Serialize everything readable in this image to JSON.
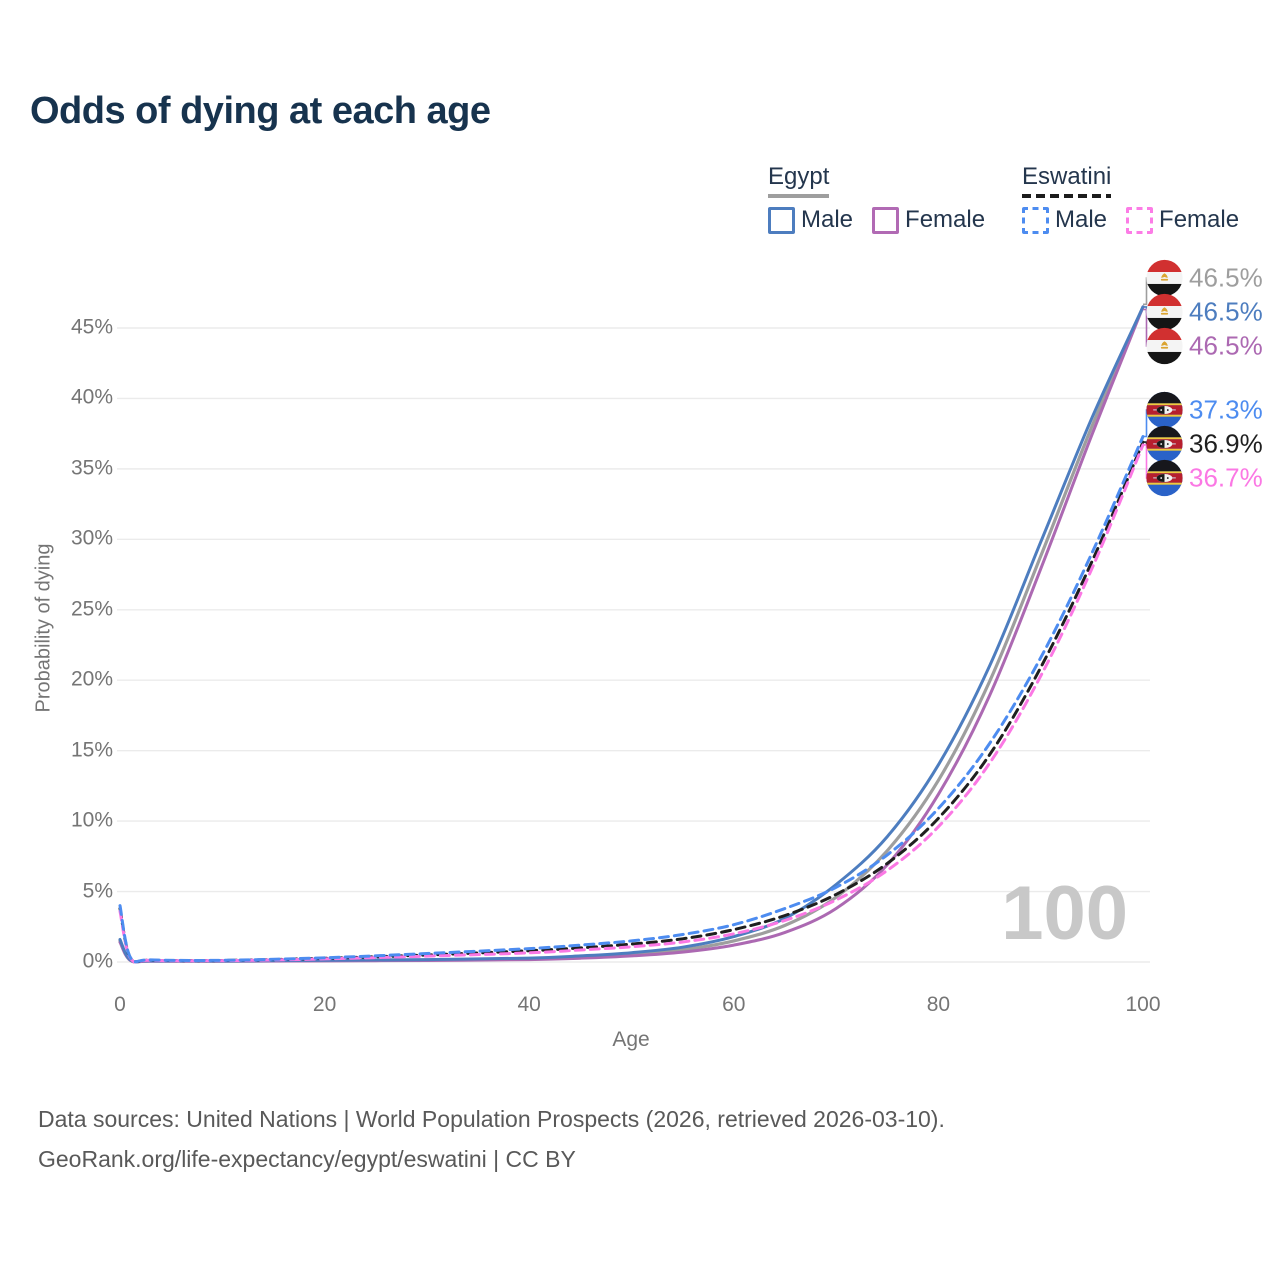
{
  "title": "Odds of dying at each age",
  "legend": {
    "groups": [
      {
        "id": "egypt",
        "label": "Egypt",
        "line_style": "solid",
        "line_color": "#9e9e9e",
        "items": [
          {
            "id": "egypt-male",
            "label": "Male",
            "color": "#4d7dbf",
            "dashed": false
          },
          {
            "id": "egypt-female",
            "label": "Female",
            "color": "#b16ab4",
            "dashed": false
          }
        ]
      },
      {
        "id": "eswatini",
        "label": "Eswatini",
        "line_style": "dashed",
        "line_color": "#1c1c1c",
        "items": [
          {
            "id": "eswatini-male",
            "label": "Male",
            "color": "#4d8cf0",
            "dashed": true
          },
          {
            "id": "eswatini-female",
            "label": "Female",
            "color": "#fc7ce6",
            "dashed": true
          }
        ]
      }
    ]
  },
  "chart_data": {
    "type": "line",
    "title": "Odds of dying at each age",
    "xlabel": "Age",
    "ylabel": "Probability of dying",
    "x_ticks": [
      0,
      20,
      40,
      60,
      80,
      100
    ],
    "y_ticks_percent": [
      0,
      5,
      10,
      15,
      20,
      25,
      30,
      35,
      40,
      45
    ],
    "xlim": [
      0,
      100
    ],
    "ylim_percent": [
      0,
      48
    ],
    "grid": "horizontal",
    "hover_age_indicator": "100",
    "series": [
      {
        "name": "Egypt - Total",
        "color": "#9e9e9e",
        "dashed": false,
        "width": 3.2,
        "end_value_percent": 46.5,
        "points": [
          [
            0,
            1.5
          ],
          [
            1,
            0.14
          ],
          [
            3,
            0.07
          ],
          [
            10,
            0.06
          ],
          [
            20,
            0.1
          ],
          [
            30,
            0.14
          ],
          [
            40,
            0.22
          ],
          [
            45,
            0.34
          ],
          [
            50,
            0.54
          ],
          [
            55,
            0.87
          ],
          [
            60,
            1.5
          ],
          [
            65,
            2.6
          ],
          [
            70,
            4.6
          ],
          [
            75,
            7.9
          ],
          [
            80,
            12.9
          ],
          [
            85,
            19.9
          ],
          [
            90,
            28.8
          ],
          [
            95,
            38.0
          ],
          [
            100,
            46.5
          ]
        ]
      },
      {
        "name": "Egypt - Female",
        "color": "#ac69b2",
        "dashed": false,
        "width": 3,
        "end_value_percent": 46.5,
        "points": [
          [
            0,
            1.4
          ],
          [
            1,
            0.12
          ],
          [
            3,
            0.06
          ],
          [
            10,
            0.05
          ],
          [
            20,
            0.08
          ],
          [
            30,
            0.11
          ],
          [
            40,
            0.17
          ],
          [
            45,
            0.27
          ],
          [
            50,
            0.43
          ],
          [
            55,
            0.7
          ],
          [
            60,
            1.2
          ],
          [
            65,
            2.1
          ],
          [
            70,
            3.8
          ],
          [
            75,
            6.9
          ],
          [
            80,
            11.9
          ],
          [
            85,
            18.9
          ],
          [
            90,
            27.9
          ],
          [
            95,
            37.4
          ],
          [
            100,
            46.5
          ]
        ]
      },
      {
        "name": "Egypt - Male",
        "color": "#4d7dbf",
        "dashed": false,
        "width": 3,
        "end_value_percent": 46.5,
        "points": [
          [
            0,
            1.6
          ],
          [
            1,
            0.15
          ],
          [
            3,
            0.08
          ],
          [
            10,
            0.07
          ],
          [
            20,
            0.12
          ],
          [
            30,
            0.17
          ],
          [
            40,
            0.28
          ],
          [
            45,
            0.43
          ],
          [
            50,
            0.66
          ],
          [
            55,
            1.05
          ],
          [
            60,
            1.8
          ],
          [
            65,
            3.1
          ],
          [
            70,
            5.5
          ],
          [
            75,
            8.9
          ],
          [
            80,
            14.0
          ],
          [
            85,
            21.0
          ],
          [
            90,
            29.8
          ],
          [
            95,
            38.6
          ],
          [
            100,
            46.5
          ]
        ]
      },
      {
        "name": "Eswatini - Total",
        "color": "#1f1f1f",
        "dashed": true,
        "width": 3,
        "end_value_percent": 36.9,
        "points": [
          [
            0,
            3.8
          ],
          [
            1,
            0.32
          ],
          [
            3,
            0.13
          ],
          [
            10,
            0.11
          ],
          [
            20,
            0.26
          ],
          [
            30,
            0.5
          ],
          [
            40,
            0.8
          ],
          [
            45,
            1.0
          ],
          [
            50,
            1.27
          ],
          [
            55,
            1.65
          ],
          [
            60,
            2.3
          ],
          [
            65,
            3.3
          ],
          [
            70,
            4.8
          ],
          [
            75,
            7.0
          ],
          [
            80,
            10.2
          ],
          [
            85,
            14.7
          ],
          [
            90,
            20.9
          ],
          [
            95,
            28.4
          ],
          [
            100,
            36.9
          ]
        ]
      },
      {
        "name": "Eswatini - Female",
        "color": "#fb78e4",
        "dashed": true,
        "width": 3,
        "end_value_percent": 36.7,
        "points": [
          [
            0,
            3.6
          ],
          [
            1,
            0.3
          ],
          [
            3,
            0.12
          ],
          [
            10,
            0.1
          ],
          [
            20,
            0.22
          ],
          [
            30,
            0.42
          ],
          [
            40,
            0.65
          ],
          [
            45,
            0.85
          ],
          [
            50,
            1.08
          ],
          [
            55,
            1.42
          ],
          [
            60,
            2.0
          ],
          [
            65,
            2.95
          ],
          [
            70,
            4.4
          ],
          [
            75,
            6.5
          ],
          [
            80,
            9.6
          ],
          [
            85,
            14.1
          ],
          [
            90,
            20.3
          ],
          [
            95,
            27.9
          ],
          [
            100,
            36.7
          ]
        ]
      },
      {
        "name": "Eswatini - Male",
        "color": "#4d8cf0",
        "dashed": true,
        "width": 3,
        "end_value_percent": 37.3,
        "points": [
          [
            0,
            4.0
          ],
          [
            1,
            0.35
          ],
          [
            3,
            0.15
          ],
          [
            10,
            0.12
          ],
          [
            20,
            0.3
          ],
          [
            30,
            0.6
          ],
          [
            40,
            0.95
          ],
          [
            45,
            1.2
          ],
          [
            50,
            1.5
          ],
          [
            55,
            1.95
          ],
          [
            60,
            2.65
          ],
          [
            65,
            3.8
          ],
          [
            70,
            5.3
          ],
          [
            75,
            7.6
          ],
          [
            80,
            10.9
          ],
          [
            85,
            15.5
          ],
          [
            90,
            21.6
          ],
          [
            95,
            29.0
          ],
          [
            100,
            37.3
          ]
        ]
      }
    ],
    "end_labels": [
      {
        "text": "46.5%",
        "color": "#9e9e9e",
        "flag": "egypt"
      },
      {
        "text": "46.5%",
        "color": "#4d7dbf",
        "flag": "egypt"
      },
      {
        "text": "46.5%",
        "color": "#ac69b2",
        "flag": "egypt"
      },
      {
        "text": "37.3%",
        "color": "#4d8cf0",
        "flag": "eswatini"
      },
      {
        "text": "36.9%",
        "color": "#1f1f1f",
        "flag": "eswatini"
      },
      {
        "text": "36.7%",
        "color": "#fb78e4",
        "flag": "eswatini"
      }
    ]
  },
  "footer": {
    "line1": "Data sources: United Nations | World Population Prospects (2026, retrieved 2026-03-10).",
    "line2": "GeoRank.org/life-expectancy/egypt/eswatini | CC BY"
  }
}
